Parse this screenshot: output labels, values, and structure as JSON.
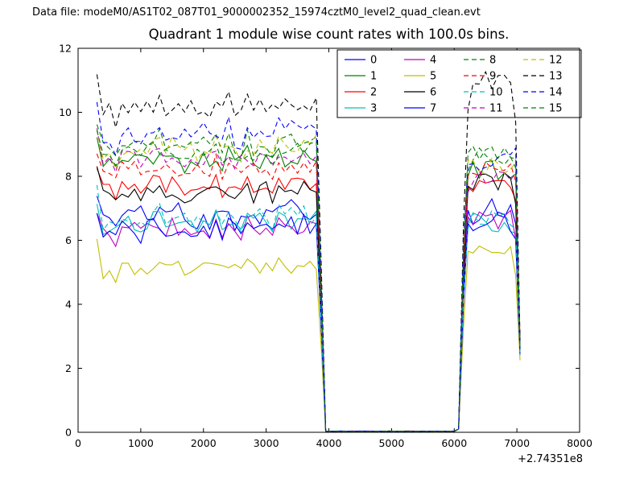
{
  "header": {
    "datafile": "Data file: modeM0/AS1T02_087T01_9000002352_15974cztM0_level2_quad_clean.evt"
  },
  "chart_data": {
    "type": "line",
    "title": "Quadrant 1 module wise count rates with 100.0s bins.",
    "xlabel": "",
    "ylabel": "",
    "xlim": [
      0,
      8000
    ],
    "ylim": [
      0,
      12
    ],
    "x_ticks": [
      0,
      1000,
      2000,
      3000,
      4000,
      5000,
      6000,
      7000,
      8000
    ],
    "y_ticks": [
      0,
      2,
      4,
      6,
      8,
      10,
      12
    ],
    "x_offset_label": "+2.74351e8",
    "bin_size_seconds": 100.0,
    "legend": {
      "columns": 4,
      "rows": 4,
      "position": "upper center-right",
      "frame": true
    },
    "segments": {
      "active1_x": [
        300,
        3900
      ],
      "gap_zero_x": [
        3900,
        6100
      ],
      "active2_x": [
        6100,
        7050
      ],
      "note": "count rate drops to 0 between ~3900 and ~6100, returns to baseline 6100-7000, final point falls to ~2.5"
    },
    "series": [
      {
        "name": "0",
        "color": "#0000ff",
        "dash": false,
        "base": 6.85,
        "noise": 0.55,
        "peak2": 1.0,
        "last": 2.5
      },
      {
        "name": "1",
        "color": "#008000",
        "dash": false,
        "base": 8.5,
        "noise": 0.4,
        "peak2": 0.97,
        "last": 2.7
      },
      {
        "name": "2",
        "color": "#ff0000",
        "dash": false,
        "base": 7.65,
        "noise": 0.4,
        "peak2": 1.02,
        "last": 2.9
      },
      {
        "name": "3",
        "color": "#00bfbf",
        "dash": false,
        "base": 6.55,
        "noise": 0.38,
        "peak2": 1.0,
        "last": 2.4
      },
      {
        "name": "4",
        "color": "#bf00bf",
        "dash": false,
        "base": 6.35,
        "noise": 0.35,
        "peak2": 1.05,
        "last": 2.6
      },
      {
        "name": "5",
        "color": "#bfbf00",
        "dash": false,
        "base": 5.15,
        "noise": 0.3,
        "peak2": 1.12,
        "last": 2.25
      },
      {
        "name": "6",
        "color": "#000000",
        "dash": false,
        "base": 7.5,
        "noise": 0.35,
        "peak2": 1.05,
        "last": 2.6
      },
      {
        "name": "7",
        "color": "#0000ff",
        "dash": false,
        "base": 6.35,
        "noise": 0.45,
        "peak2": 1.03,
        "last": 2.45
      },
      {
        "name": "8",
        "color": "#008000",
        "dash": true,
        "base": 9.0,
        "noise": 0.4,
        "peak2": 0.97,
        "last": 2.8
      },
      {
        "name": "9",
        "color": "#ff0000",
        "dash": true,
        "base": 8.25,
        "noise": 0.35,
        "peak2": 1.0,
        "last": 2.8
      },
      {
        "name": "10",
        "color": "#00bfbf",
        "dash": true,
        "base": 6.7,
        "noise": 0.4,
        "peak2": 1.0,
        "last": 2.5
      },
      {
        "name": "11",
        "color": "#bf00bf",
        "dash": true,
        "base": 8.55,
        "noise": 0.35,
        "peak2": 0.93,
        "last": 2.7
      },
      {
        "name": "12",
        "color": "#bfbf00",
        "dash": true,
        "base": 8.85,
        "noise": 0.4,
        "peak2": 0.95,
        "last": 2.6
      },
      {
        "name": "13",
        "color": "#000000",
        "dash": true,
        "base": 10.2,
        "noise": 0.4,
        "peak2": 1.07,
        "last": 2.9
      },
      {
        "name": "14",
        "color": "#0000ff",
        "dash": true,
        "base": 9.35,
        "noise": 0.45,
        "peak2": 0.9,
        "last": 2.7
      },
      {
        "name": "15",
        "color": "#008000",
        "dash": true,
        "base": 8.7,
        "noise": 0.4,
        "peak2": 1.0,
        "last": 2.65
      }
    ]
  }
}
